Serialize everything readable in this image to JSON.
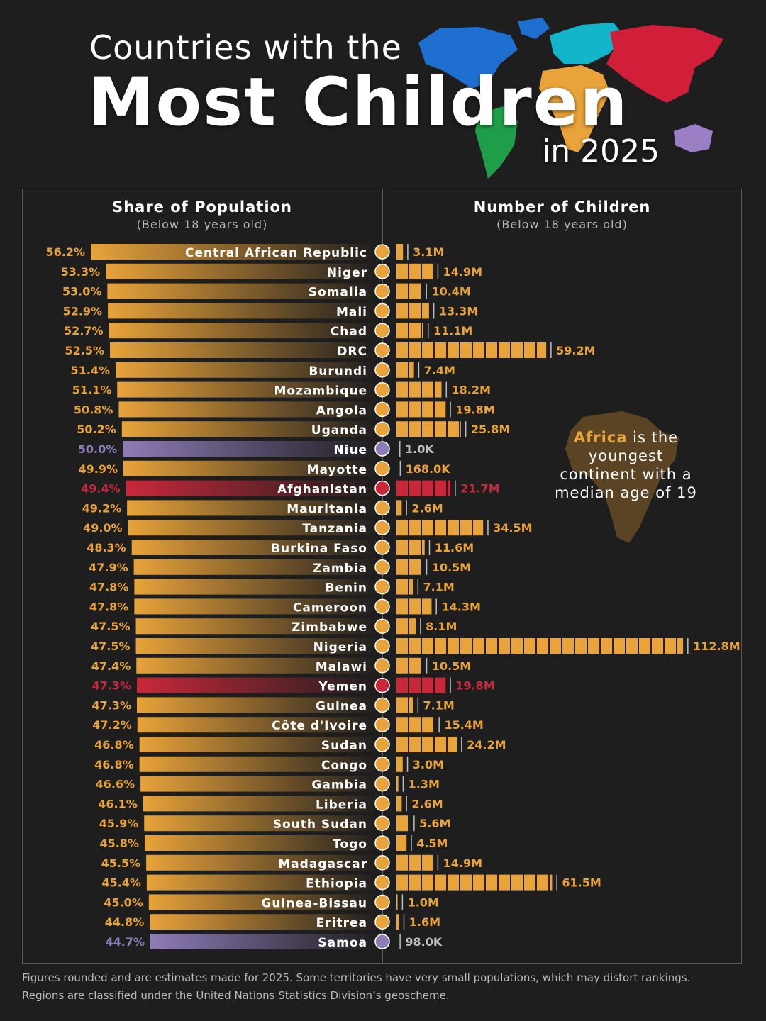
{
  "title": {
    "line1": "Countries with the",
    "line2": "Most Children",
    "line3": "in 2025"
  },
  "left_header": {
    "title": "Share of Population",
    "subtitle": "(Below 18 years old)"
  },
  "right_header": {
    "title": "Number of Children",
    "subtitle": "(Below 18 years old)"
  },
  "callout": {
    "highlight": "Africa",
    "text": " is the youngest continent with a median age of 19"
  },
  "footer": {
    "line1": "Figures rounded and are estimates made for 2025. Some territories have very small populations, which may distort rankings.",
    "line2": "Regions are classified under the United Nations Statistics Division’s geoscheme."
  },
  "colors": {
    "africa": "#e8a33a",
    "asia": "#c8283a",
    "oceania": "#8e7cb8",
    "background": "#1f1e1e",
    "map_americas_north": "#1f6fd1",
    "map_americas_south": "#1f9e4a",
    "map_europe": "#12b5c9",
    "map_asia": "#d11f3a",
    "map_africa": "#e8a33a",
    "map_oceania": "#9b7fc4"
  },
  "chart_data": [
    {
      "type": "bar",
      "title": "Share of Population",
      "subtitle": "(Below 18 years old)",
      "unit": "%",
      "categories": [
        "Central African Republic",
        "Niger",
        "Somalia",
        "Mali",
        "Chad",
        "DRC",
        "Burundi",
        "Mozambique",
        "Angola",
        "Uganda",
        "Niue",
        "Mayotte",
        "Afghanistan",
        "Mauritania",
        "Tanzania",
        "Burkina Faso",
        "Zambia",
        "Benin",
        "Cameroon",
        "Zimbabwe",
        "Nigeria",
        "Malawi",
        "Yemen",
        "Guinea",
        "Côte d'Ivoire",
        "Sudan",
        "Congo",
        "Gambia",
        "Liberia",
        "South Sudan",
        "Togo",
        "Madagascar",
        "Ethiopia",
        "Guinea-Bissau",
        "Eritrea",
        "Samoa"
      ],
      "values": [
        56.2,
        53.3,
        53.0,
        52.9,
        52.7,
        52.5,
        51.4,
        51.1,
        50.8,
        50.2,
        50.0,
        49.9,
        49.4,
        49.2,
        49.0,
        48.3,
        47.9,
        47.8,
        47.8,
        47.5,
        47.5,
        47.4,
        47.3,
        47.3,
        47.2,
        46.8,
        46.8,
        46.6,
        46.1,
        45.9,
        45.8,
        45.5,
        45.4,
        45.0,
        44.8,
        44.7
      ],
      "labels": [
        "56.2%",
        "53.3%",
        "53.0%",
        "52.9%",
        "52.7%",
        "52.5%",
        "51.4%",
        "51.1%",
        "50.8%",
        "50.2%",
        "50.0%",
        "49.9%",
        "49.4%",
        "49.2%",
        "49.0%",
        "48.3%",
        "47.9%",
        "47.8%",
        "47.8%",
        "47.5%",
        "47.5%",
        "47.4%",
        "47.3%",
        "47.3%",
        "47.2%",
        "46.8%",
        "46.8%",
        "46.6%",
        "46.1%",
        "45.9%",
        "45.8%",
        "45.5%",
        "45.4%",
        "45.0%",
        "44.8%",
        "44.7%"
      ],
      "region": [
        "africa",
        "africa",
        "africa",
        "africa",
        "africa",
        "africa",
        "africa",
        "africa",
        "africa",
        "africa",
        "oceania",
        "africa",
        "asia",
        "africa",
        "africa",
        "africa",
        "africa",
        "africa",
        "africa",
        "africa",
        "africa",
        "africa",
        "asia",
        "africa",
        "africa",
        "africa",
        "africa",
        "africa",
        "africa",
        "africa",
        "africa",
        "africa",
        "africa",
        "africa",
        "africa",
        "oceania"
      ]
    },
    {
      "type": "bar",
      "title": "Number of Children",
      "subtitle": "(Below 18 years old)",
      "unit": "millions",
      "categories": [
        "Central African Republic",
        "Niger",
        "Somalia",
        "Mali",
        "Chad",
        "DRC",
        "Burundi",
        "Mozambique",
        "Angola",
        "Uganda",
        "Niue",
        "Mayotte",
        "Afghanistan",
        "Mauritania",
        "Tanzania",
        "Burkina Faso",
        "Zambia",
        "Benin",
        "Cameroon",
        "Zimbabwe",
        "Nigeria",
        "Malawi",
        "Yemen",
        "Guinea",
        "Côte d'Ivoire",
        "Sudan",
        "Congo",
        "Gambia",
        "Liberia",
        "South Sudan",
        "Togo",
        "Madagascar",
        "Ethiopia",
        "Guinea-Bissau",
        "Eritrea",
        "Samoa"
      ],
      "values": [
        3.1,
        14.9,
        10.4,
        13.3,
        11.1,
        59.2,
        7.4,
        18.2,
        19.8,
        25.8,
        0.001,
        0.168,
        21.7,
        2.6,
        34.5,
        11.6,
        10.5,
        7.1,
        14.3,
        8.1,
        112.8,
        10.5,
        19.8,
        7.1,
        15.4,
        24.2,
        3.0,
        1.3,
        2.6,
        5.6,
        4.5,
        14.9,
        61.5,
        1.0,
        1.6,
        0.098
      ],
      "labels": [
        "3.1M",
        "14.9M",
        "10.4M",
        "13.3M",
        "11.1M",
        "59.2M",
        "7.4M",
        "18.2M",
        "19.8M",
        "25.8M",
        "1.0K",
        "168.0K",
        "21.7M",
        "2.6M",
        "34.5M",
        "11.6M",
        "10.5M",
        "7.1M",
        "14.3M",
        "8.1M",
        "112.8M",
        "10.5M",
        "19.8M",
        "7.1M",
        "15.4M",
        "24.2M",
        "3.0M",
        "1.3M",
        "2.6M",
        "5.6M",
        "4.5M",
        "14.9M",
        "61.5M",
        "1.0M",
        "1.6M",
        "98.0K"
      ]
    }
  ]
}
